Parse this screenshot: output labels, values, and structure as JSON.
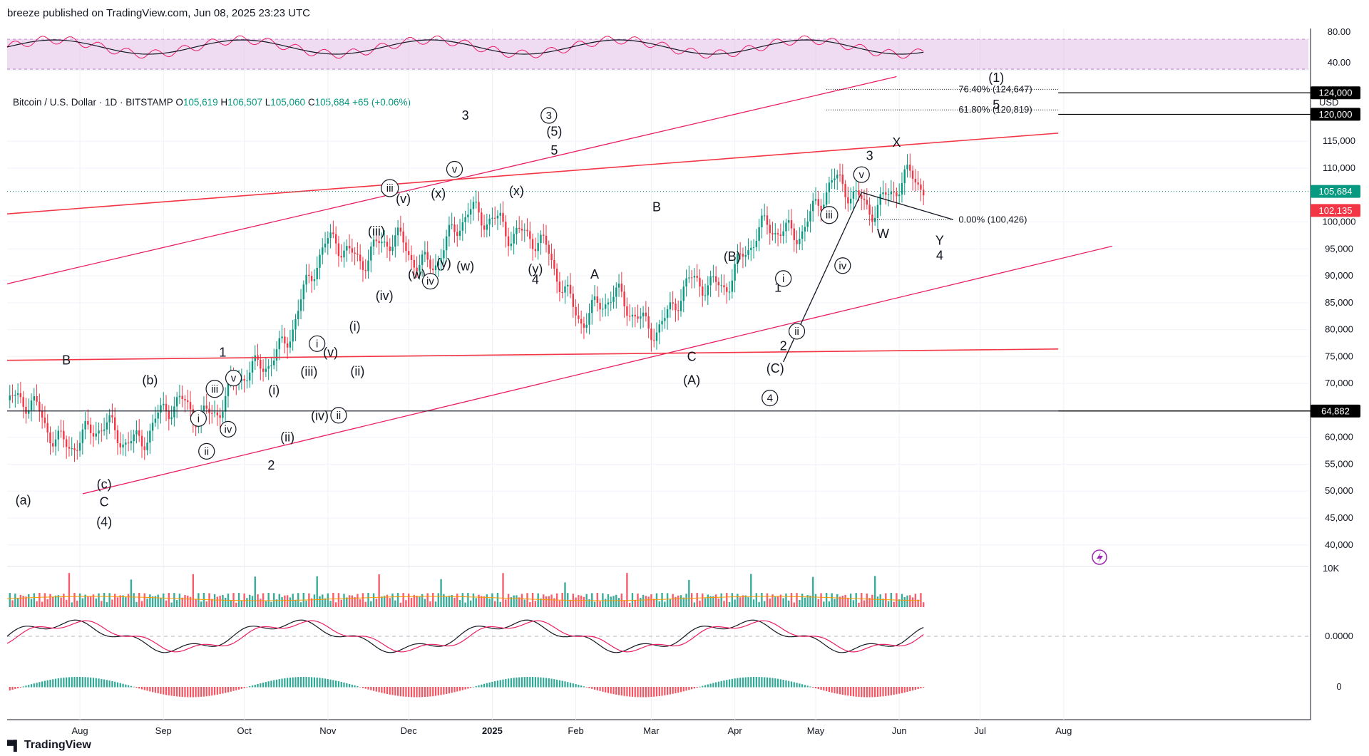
{
  "header": {
    "credit": "breeze published on TradingView.com, Jun 08, 2025 23:23 UTC"
  },
  "symbol": {
    "name": "Bitcoin / U.S. Dollar · 1D · BITSTAMP",
    "o_label": "O",
    "o": "105,619",
    "h_label": "H",
    "h": "106,507",
    "l_label": "L",
    "l": "105,060",
    "c_label": "C",
    "c": "105,684",
    "change": "+65 (+0.06%)"
  },
  "currency": "USD",
  "footer": {
    "brand": "TradingView"
  },
  "colors": {
    "up": "#089981",
    "down": "#f23645",
    "pink": "#e91e63",
    "rsi": "#e91e63",
    "accent": "#9c27b0"
  },
  "chart_data": {
    "type": "candlestick",
    "x_axis": [
      "Aug",
      "Sep",
      "Oct",
      "Nov",
      "Dec",
      "2025",
      "Feb",
      "Mar",
      "Apr",
      "May",
      "Jun",
      "Jul",
      "Aug"
    ],
    "price_axis": {
      "ticks": [
        "115,000",
        "110,000",
        "100,000",
        "95,000",
        "90,000",
        "85,000",
        "80,000",
        "75,000",
        "70,000",
        "65,000",
        "60,000",
        "55,000",
        "50,000",
        "45,000",
        "40,000"
      ],
      "tags": [
        {
          "text": "124,000",
          "value": 124000,
          "style": "black"
        },
        {
          "text": "120,000",
          "value": 120000,
          "style": "black"
        },
        {
          "text": "105,684",
          "value": 105684,
          "style": "green"
        },
        {
          "text": "102,135",
          "value": 102135,
          "style": "red"
        },
        {
          "text": "64,882",
          "value": 64882,
          "style": "black"
        }
      ],
      "range": [
        36000,
        128000
      ]
    },
    "rsi_axis": {
      "ticks": [
        "80.00",
        "40.00"
      ]
    },
    "volume_axis": {
      "ticks": [
        "10K"
      ]
    },
    "macd_axis": {
      "ticks": [
        "0.0000",
        "0"
      ]
    },
    "fib_levels": [
      {
        "label": "76.40% (124,647)",
        "value": 124647
      },
      {
        "label": "61.80% (120,819)",
        "value": 120819
      },
      {
        "label": "0.00% (100,426)",
        "value": 100426
      }
    ],
    "wave_labels": [
      {
        "t": "B",
        "day": 22,
        "p": 73500
      },
      {
        "t": "(b)",
        "day": 53,
        "p": 69800
      },
      {
        "t": "(a)",
        "day": 6,
        "p": 47500
      },
      {
        "t": "(c)",
        "day": 36,
        "p": 50500
      },
      {
        "t": "C",
        "day": 36,
        "p": 47200
      },
      {
        "t": "(4)",
        "day": 36,
        "p": 43500
      },
      {
        "t": "1",
        "day": 80,
        "p": 75000
      },
      {
        "t": "2",
        "day": 98,
        "p": 54000
      },
      {
        "t": "(i)",
        "day": 99,
        "p": 68000
      },
      {
        "t": "(ii)",
        "day": 104,
        "p": 59200
      },
      {
        "t": "(iii)",
        "day": 112,
        "p": 71400
      },
      {
        "t": "(iv)",
        "day": 116,
        "p": 63200
      },
      {
        "t": "(v)",
        "day": 120,
        "p": 75000
      },
      {
        "t": "(i)",
        "day": 129,
        "p": 79800
      },
      {
        "t": "(ii)",
        "day": 130,
        "p": 71500
      },
      {
        "t": "(iii)",
        "day": 137,
        "p": 97500
      },
      {
        "t": "(iv)",
        "day": 140,
        "p": 85500
      },
      {
        "t": "(v)",
        "day": 147,
        "p": 103500
      },
      {
        "t": "(w)",
        "day": 152,
        "p": 89500
      },
      {
        "t": "(x)",
        "day": 160,
        "p": 104500
      },
      {
        "t": "(y)",
        "day": 162,
        "p": 91500
      },
      {
        "t": "(w)",
        "day": 170,
        "p": 91000
      },
      {
        "t": "3",
        "day": 170,
        "p": 119000
      },
      {
        "t": "(x)",
        "day": 189,
        "p": 105000
      },
      {
        "t": "(y)",
        "day": 196,
        "p": 90500
      },
      {
        "t": "4",
        "day": 196,
        "p": 88500
      },
      {
        "t": "(5)",
        "day": 203,
        "p": 116000
      },
      {
        "t": "5",
        "day": 203,
        "p": 112500
      },
      {
        "t": "A",
        "day": 218,
        "p": 89500
      },
      {
        "t": "B",
        "day": 241,
        "p": 102000
      },
      {
        "t": "C",
        "day": 254,
        "p": 74200
      },
      {
        "t": "(A)",
        "day": 254,
        "p": 69800
      },
      {
        "t": "(B)",
        "day": 269,
        "p": 92800
      },
      {
        "t": "1",
        "day": 286,
        "p": 87000
      },
      {
        "t": "2",
        "day": 288,
        "p": 76200
      },
      {
        "t": "(C)",
        "day": 285,
        "p": 72000
      },
      {
        "t": "3",
        "day": 320,
        "p": 111500
      },
      {
        "t": "X",
        "day": 330,
        "p": 114000
      },
      {
        "t": "W",
        "day": 325,
        "p": 97000
      },
      {
        "t": "Y",
        "day": 346,
        "p": 95800
      },
      {
        "t": "4",
        "day": 346,
        "p": 93000
      },
      {
        "t": "(1)",
        "day": 367,
        "p": 126000
      },
      {
        "t": "5",
        "day": 367,
        "p": 121000
      }
    ],
    "wave_labels_circled": [
      {
        "t": "i",
        "day": 71,
        "p": 62700
      },
      {
        "t": "ii",
        "day": 74,
        "p": 56600
      },
      {
        "t": "iii",
        "day": 77,
        "p": 68200
      },
      {
        "t": "iv",
        "day": 82,
        "p": 60700
      },
      {
        "t": "v",
        "day": 84,
        "p": 70200
      },
      {
        "t": "i",
        "day": 115,
        "p": 76600
      },
      {
        "t": "ii",
        "day": 123,
        "p": 63300
      },
      {
        "t": "iii",
        "day": 142,
        "p": 105500
      },
      {
        "t": "iv",
        "day": 157,
        "p": 88200
      },
      {
        "t": "v",
        "day": 166,
        "p": 109000
      },
      {
        "t": "3",
        "day": 201,
        "p": 119000
      },
      {
        "t": "4",
        "day": 283,
        "p": 66500
      },
      {
        "t": "i",
        "day": 288,
        "p": 88700
      },
      {
        "t": "ii",
        "day": 293,
        "p": 78900
      },
      {
        "t": "iii",
        "day": 305,
        "p": 100500
      },
      {
        "t": "iv",
        "day": 310,
        "p": 91100
      },
      {
        "t": "v",
        "day": 317,
        "p": 108000
      }
    ],
    "closes_monthly": [
      {
        "m": "Jul-2024",
        "p": 66000
      },
      {
        "m": "Aug",
        "p": 59000
      },
      {
        "m": "Sep",
        "p": 63500
      },
      {
        "m": "Oct",
        "p": 70200
      },
      {
        "m": "Nov",
        "p": 96400
      },
      {
        "m": "Dec",
        "p": 93400
      },
      {
        "m": "Jan",
        "p": 102400
      },
      {
        "m": "Feb",
        "p": 84300
      },
      {
        "m": "Mar",
        "p": 82500
      },
      {
        "m": "Apr",
        "p": 94200
      },
      {
        "m": "May",
        "p": 104600
      },
      {
        "m": "Jun",
        "p": 105684
      }
    ]
  }
}
